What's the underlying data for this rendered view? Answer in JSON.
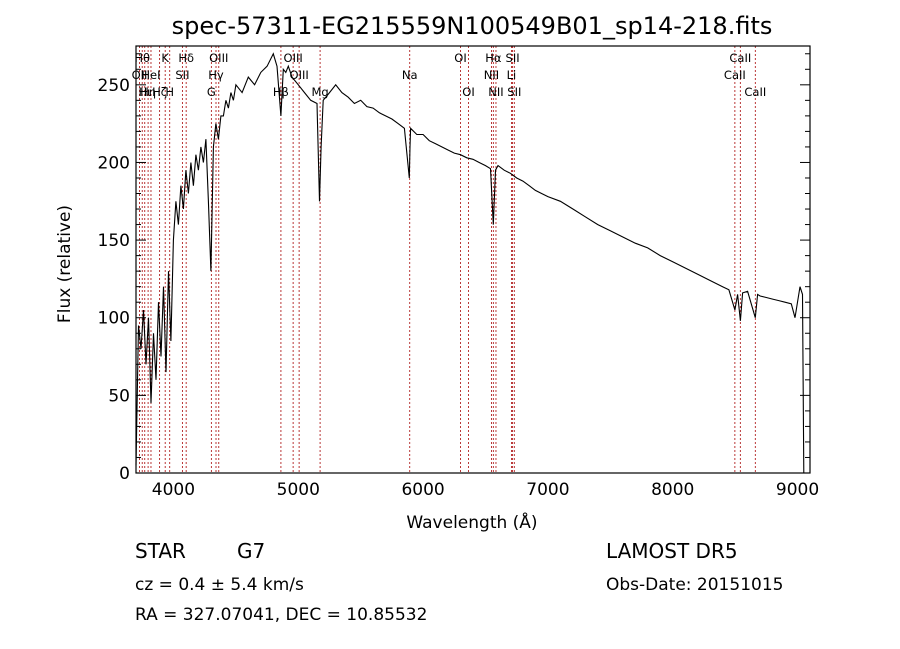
{
  "chart_data": {
    "type": "line",
    "title": "spec-57311-EG215559N100549B01_sp14-218.fits",
    "xlabel": "Wavelength (Å)",
    "ylabel": "Flux (relative)",
    "xlim": [
      3700,
      9100
    ],
    "ylim": [
      0,
      275
    ],
    "xticks": [
      4000,
      5000,
      6000,
      7000,
      8000,
      9000
    ],
    "yticks": [
      0,
      50,
      100,
      150,
      200,
      250
    ],
    "grid": false,
    "series": [
      {
        "x": [
          3700,
          3720,
          3740,
          3760,
          3780,
          3800,
          3820,
          3840,
          3860,
          3880,
          3900,
          3920,
          3940,
          3960,
          3980,
          4000,
          4020,
          4040,
          4060,
          4080,
          4100,
          4120,
          4140,
          4160,
          4180,
          4200,
          4220,
          4240,
          4260,
          4280,
          4300,
          4320,
          4340,
          4360,
          4380,
          4400,
          4420,
          4440,
          4460,
          4480,
          4500,
          4550,
          4600,
          4650,
          4700,
          4750,
          4800,
          4830,
          4861,
          4880,
          4900,
          4920,
          4950,
          5000,
          5050,
          5100,
          5150,
          5170,
          5183,
          5200,
          5250,
          5300,
          5350,
          5400,
          5450,
          5500,
          5550,
          5600,
          5650,
          5700,
          5750,
          5800,
          5850,
          5890,
          5895,
          5900,
          5950,
          6000,
          6050,
          6100,
          6150,
          6200,
          6250,
          6300,
          6350,
          6400,
          6450,
          6500,
          6540,
          6563,
          6580,
          6600,
          6650,
          6700,
          6750,
          6800,
          6850,
          6900,
          6950,
          7000,
          7100,
          7200,
          7300,
          7400,
          7500,
          7600,
          7700,
          7800,
          7900,
          8000,
          8100,
          8200,
          8300,
          8400,
          8450,
          8498,
          8520,
          8542,
          8560,
          8600,
          8662,
          8680,
          8700,
          8750,
          8800,
          8850,
          8900,
          8950,
          8980,
          9000,
          9020,
          9040,
          9050
        ],
        "y": [
          5,
          95,
          80,
          105,
          70,
          100,
          45,
          90,
          60,
          110,
          75,
          120,
          65,
          130,
          85,
          150,
          175,
          160,
          185,
          170,
          195,
          180,
          200,
          185,
          205,
          195,
          210,
          200,
          215,
          175,
          130,
          210,
          225,
          215,
          230,
          230,
          240,
          235,
          245,
          240,
          250,
          245,
          255,
          250,
          258,
          262,
          270,
          262,
          230,
          260,
          258,
          262,
          255,
          250,
          245,
          240,
          238,
          175,
          210,
          240,
          245,
          250,
          245,
          242,
          238,
          240,
          236,
          235,
          232,
          230,
          228,
          225,
          222,
          190,
          210,
          222,
          218,
          218,
          214,
          212,
          210,
          208,
          206,
          205,
          203,
          202,
          200,
          198,
          196,
          160,
          195,
          198,
          195,
          193,
          190,
          188,
          185,
          182,
          180,
          178,
          175,
          170,
          165,
          160,
          156,
          152,
          148,
          145,
          140,
          136,
          132,
          128,
          124,
          120,
          118,
          105,
          115,
          98,
          116,
          117,
          100,
          115,
          114,
          113,
          112,
          111,
          110,
          109,
          100,
          110,
          120,
          115,
          0
        ]
      }
    ],
    "lines": [
      {
        "wl": 3728,
        "label": "OII",
        "row": 1
      },
      {
        "wl": 3750,
        "label": "Hθ",
        "row": 0
      },
      {
        "wl": 3770,
        "label": "Hι",
        "row": 2
      },
      {
        "wl": 3797,
        "label": "Hη",
        "row": 2
      },
      {
        "wl": 3820,
        "label": "HeI",
        "row": 1
      },
      {
        "wl": 3889,
        "label": "Hζ",
        "row": 2
      },
      {
        "wl": 3934,
        "label": "K",
        "row": 0
      },
      {
        "wl": 3970,
        "label": "H",
        "row": 2
      },
      {
        "wl": 4072,
        "label": "SII",
        "row": 1
      },
      {
        "wl": 4102,
        "label": "Hδ",
        "row": 0
      },
      {
        "wl": 4304,
        "label": "G",
        "row": 2
      },
      {
        "wl": 4341,
        "label": "Hγ",
        "row": 1
      },
      {
        "wl": 4363,
        "label": "OIII",
        "row": 0
      },
      {
        "wl": 4861,
        "label": "Hβ",
        "row": 2
      },
      {
        "wl": 4959,
        "label": "OIII",
        "row": 0
      },
      {
        "wl": 5007,
        "label": "OIII",
        "row": 1
      },
      {
        "wl": 5175,
        "label": "Mg",
        "row": 2
      },
      {
        "wl": 5893,
        "label": "Na",
        "row": 1
      },
      {
        "wl": 6300,
        "label": "OI",
        "row": 0
      },
      {
        "wl": 6364,
        "label": "OI",
        "row": 2
      },
      {
        "wl": 6548,
        "label": "NII",
        "row": 1
      },
      {
        "wl": 6563,
        "label": "Hα",
        "row": 0
      },
      {
        "wl": 6584,
        "label": "NII",
        "row": 2
      },
      {
        "wl": 6708,
        "label": "Li",
        "row": 1
      },
      {
        "wl": 6717,
        "label": "SII",
        "row": 0
      },
      {
        "wl": 6731,
        "label": "SII",
        "row": 2
      },
      {
        "wl": 8498,
        "label": "CaII",
        "row": 1
      },
      {
        "wl": 8542,
        "label": "CaII",
        "row": 0
      },
      {
        "wl": 8662,
        "label": "CaII",
        "row": 2
      }
    ]
  },
  "footer": {
    "class_label": "STAR",
    "subclass": "G7",
    "survey": "LAMOST DR5",
    "cz": "cz = 0.4 ± 5.4 km/s",
    "obs_date": "Obs-Date: 20151015",
    "coords": "RA = 327.07041, DEC =  10.85532"
  }
}
